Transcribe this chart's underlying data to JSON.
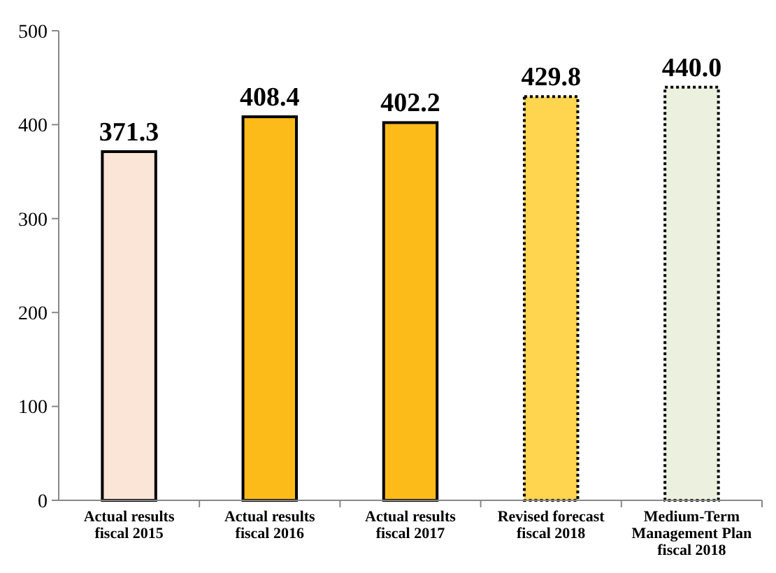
{
  "chart_data": {
    "type": "bar",
    "categories": [
      "Actual results fiscal 2015",
      "Actual results fiscal 2016",
      "Actual results fiscal 2017",
      "Revised forecast fiscal 2018",
      "Medium-Term Management Plan fiscal 2018"
    ],
    "stacked": true,
    "series": [
      {
        "values": [
          371.3,
          408.4,
          402.2,
          null,
          null
        ],
        "colors": [
          "#fbe5d6",
          "#fdbb1a",
          "#fdbb1a",
          null,
          null
        ],
        "line_style": "solid",
        "value_labels": [
          "371.3",
          "408.4",
          "402.2",
          null,
          null
        ]
      },
      {
        "values": [
          null,
          null,
          null,
          429.8,
          440.0
        ],
        "colors": [
          null,
          null,
          null,
          "#ffd54f",
          "#ebf1de"
        ],
        "line_style": "dotted",
        "value_labels": [
          null,
          null,
          null,
          "429.8",
          "440.0"
        ]
      }
    ],
    "ylim": [
      0,
      500
    ],
    "yticks": [
      0,
      100,
      200,
      300,
      400,
      500
    ],
    "grid": false
  }
}
